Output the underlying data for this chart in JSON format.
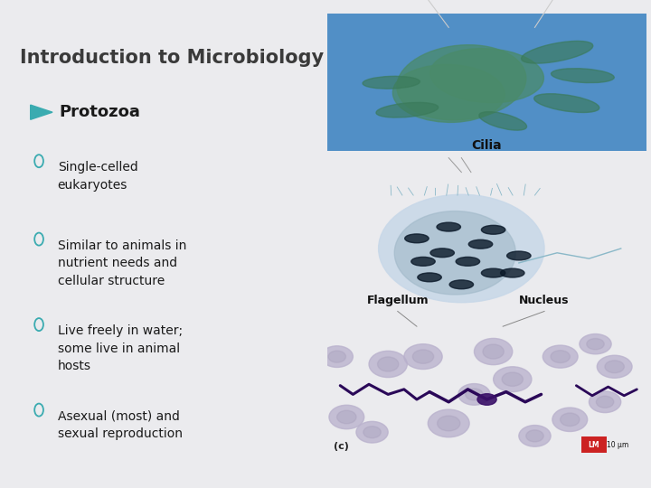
{
  "title": "Introduction to Microbiology",
  "title_color": "#3a3a3a",
  "title_fontsize": 15,
  "background_color": "#ebebee",
  "bullet_header": "Protozoa",
  "bullet_header_color": "#1a1a1a",
  "bullet_arrow_color": "#3aabb0",
  "bullet_points": [
    "Single-celled\neukaryotes",
    "Similar to animals in\nnutrient needs and\ncellular structure",
    "Live freely in water;\nsome live in animal\nhosts",
    "Asexual (most) and\nsexual reproduction"
  ],
  "bullet_color": "#1a1a1a",
  "sub_bullet_circle_color": "#3aabb0",
  "font_family": "DejaVu Sans",
  "text_fontsize": 10,
  "header_fontsize": 13,
  "img1_bg": "#1a6fba",
  "img2_bg": "#1a6fba",
  "img3_bg": "#dcdae5",
  "label_fontsize": 9,
  "label_color": "#111111",
  "label_fw": "bold"
}
